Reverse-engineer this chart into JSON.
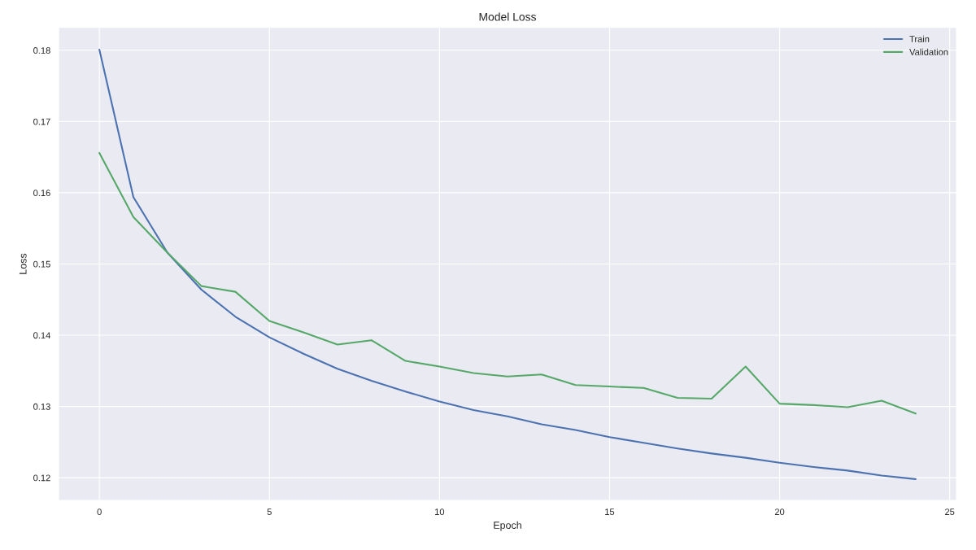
{
  "chart_data": {
    "type": "line",
    "title": "Model Loss",
    "xlabel": "Epoch",
    "ylabel": "Loss",
    "x": [
      0,
      1,
      2,
      3,
      4,
      5,
      6,
      7,
      8,
      9,
      10,
      11,
      12,
      13,
      14,
      15,
      16,
      17,
      18,
      19,
      20,
      21,
      22,
      23,
      24
    ],
    "series": [
      {
        "name": "Train",
        "color": "#4c72b0",
        "values": [
          0.1801,
          0.1594,
          0.1516,
          0.1464,
          0.1426,
          0.1397,
          0.1374,
          0.1353,
          0.1336,
          0.1321,
          0.1307,
          0.1295,
          0.1286,
          0.1275,
          0.1267,
          0.1257,
          0.1249,
          0.1241,
          0.1234,
          0.1228,
          0.1221,
          0.1215,
          0.121,
          0.1203,
          0.1198
        ]
      },
      {
        "name": "Validation",
        "color": "#55a868",
        "values": [
          0.1656,
          0.1566,
          0.1516,
          0.1469,
          0.1461,
          0.142,
          0.1404,
          0.1387,
          0.1393,
          0.1364,
          0.1356,
          0.1347,
          0.1342,
          0.1345,
          0.133,
          0.1328,
          0.1326,
          0.1312,
          0.1311,
          0.1356,
          0.1304,
          0.1302,
          0.1299,
          0.1308,
          0.129
        ]
      }
    ],
    "xlim": [
      -1.2,
      25.2
    ],
    "ylim": [
      0.1168,
      0.1832
    ],
    "xticks": [
      0,
      5,
      10,
      15,
      20,
      25
    ],
    "yticks": [
      0.12,
      0.13,
      0.14,
      0.15,
      0.16,
      0.17,
      0.18
    ],
    "grid": true,
    "legend": "top right",
    "marker": "none",
    "line_style": "solid"
  }
}
